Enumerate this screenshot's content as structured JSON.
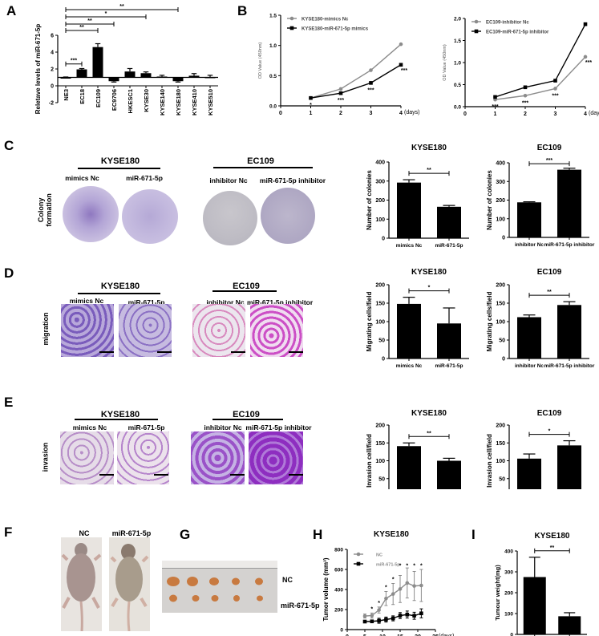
{
  "panels": {
    "A": {
      "letter": "A"
    },
    "B": {
      "letter": "B"
    },
    "C": {
      "letter": "C",
      "row_label_line1": "Colony",
      "row_label_line2": "formation",
      "group1": {
        "title": "KYSE180",
        "cond1": "mimics Nc",
        "cond2": "miR-671-5p"
      },
      "group2": {
        "title": "EC109",
        "cond1": "inhibitor Nc",
        "cond2": "miR-671-5p inhibitor"
      }
    },
    "D": {
      "letter": "D",
      "row_label": "migration",
      "group1": {
        "title": "KYSE180",
        "cond1": "mimics Nc",
        "cond2": "miR-671-5p"
      },
      "group2": {
        "title": "EC109",
        "cond1": "inhibitor Nc",
        "cond2": "miR-671-5p inhibitor"
      }
    },
    "E": {
      "letter": "E",
      "row_label": "invasion",
      "group1": {
        "title": "KYSE180",
        "cond1": "mimics Nc",
        "cond2": "miR-671-5p"
      },
      "group2": {
        "title": "EC109",
        "cond1": "inhibitor Nc",
        "cond2": "miR-671-5p inhibitor"
      }
    },
    "F": {
      "letter": "F",
      "label1": "NC",
      "label2": "miR-671-5p"
    },
    "G": {
      "letter": "G",
      "row1": "NC",
      "row2": "miR-671-5p"
    },
    "H": {
      "letter": "H"
    },
    "I": {
      "letter": "I"
    }
  },
  "colors": {
    "bar": "#000000",
    "grey_series": "#8c8c8c",
    "black_series": "#000000",
    "kyse_stain": "#9a86c8",
    "ec109_mig_stain": "#d86ab8",
    "ec109_inv_stain": "#a25ad0",
    "plate_bg": "#d8d4e0"
  },
  "chart_data": [
    {
      "id": "A",
      "type": "bar",
      "title": "",
      "ylabel": "Reletave levels of miR-671-5p",
      "xlabel": "",
      "categories": [
        "NE3",
        "EC18",
        "EC109",
        "EC9706",
        "HKESC1",
        "KYSE30",
        "KYSE140",
        "KYSE180",
        "KYSE410",
        "KYSE510"
      ],
      "values": [
        1.0,
        1.95,
        4.6,
        0.55,
        1.7,
        1.5,
        1.1,
        0.55,
        1.2,
        1.05
      ],
      "errors": [
        0.05,
        0.1,
        0.4,
        0.1,
        0.35,
        0.15,
        0.15,
        0.1,
        0.25,
        0.2
      ],
      "baseline": 1.0,
      "ylim": [
        -2,
        6
      ],
      "yticks": [
        -2,
        0,
        2,
        4,
        6
      ],
      "significance": [
        {
          "from": "NE3",
          "to": "EC18",
          "label": "***"
        },
        {
          "from": "NE3",
          "to": "EC109",
          "label": "**"
        },
        {
          "from": "NE3",
          "to": "EC9706",
          "label": "**"
        },
        {
          "from": "NE3",
          "to": "KYSE30",
          "label": "*"
        },
        {
          "from": "NE3",
          "to": "KYSE180",
          "label": "**"
        }
      ]
    },
    {
      "id": "B1",
      "type": "line",
      "ylabel": "OD Value (450nm)",
      "xlabel": "(days)",
      "x": [
        1,
        2,
        3,
        4
      ],
      "xticks": [
        0,
        1,
        2,
        3,
        4
      ],
      "ylim": [
        0,
        1.5
      ],
      "yticks": [
        "0.0",
        "0.5",
        "1.0",
        "1.5"
      ],
      "legend_position": "top-left",
      "series": [
        {
          "name": "KYSE180-mimics Nc",
          "color": "grey",
          "marker": "circle",
          "values": [
            0.13,
            0.28,
            0.59,
            1.02
          ]
        },
        {
          "name": "KYSE180-miR-671-5p mimics",
          "color": "black",
          "marker": "square",
          "values": [
            0.13,
            0.21,
            0.38,
            0.68
          ]
        }
      ],
      "annotations": [
        "*",
        "***",
        "***",
        "***"
      ]
    },
    {
      "id": "B2",
      "type": "line",
      "ylabel": "OD Value (450nm)",
      "xlabel": "(days)",
      "x": [
        1,
        2,
        3,
        4
      ],
      "xticks": [
        0,
        1,
        2,
        3,
        4
      ],
      "ylim": [
        0,
        2.0
      ],
      "yticks": [
        "0.0",
        "0.5",
        "1.0",
        "1.5",
        "2.0"
      ],
      "legend_position": "top-left",
      "series": [
        {
          "name": "EC109-inhibitor Nc",
          "color": "grey",
          "marker": "circle",
          "values": [
            0.16,
            0.25,
            0.41,
            1.13
          ]
        },
        {
          "name": "EC109-miR-671-5p inhibitor",
          "color": "black",
          "marker": "square",
          "values": [
            0.22,
            0.44,
            0.59,
            1.87
          ]
        }
      ],
      "annotations": [
        "***",
        "***",
        "***",
        "***"
      ]
    },
    {
      "id": "C1",
      "type": "bar",
      "title": "KYSE180",
      "ylabel": "Number of colonies",
      "categories": [
        "mimics Nc",
        "miR-671-5p"
      ],
      "values": [
        292,
        165
      ],
      "errors": [
        15,
        7
      ],
      "ylim": [
        0,
        400
      ],
      "yticks": [
        0,
        100,
        200,
        300,
        400
      ],
      "significance": [
        {
          "label": "**"
        }
      ]
    },
    {
      "id": "C2",
      "type": "bar",
      "title": "EC109",
      "ylabel": "Number of colonies",
      "categories": [
        "inhibitor Nc",
        "miR-671-5p inhibitor"
      ],
      "values": [
        188,
        363
      ],
      "errors": [
        3,
        8
      ],
      "ylim": [
        0,
        400
      ],
      "yticks": [
        0,
        100,
        200,
        300,
        400
      ],
      "significance": [
        {
          "label": "***"
        }
      ]
    },
    {
      "id": "D1",
      "type": "bar",
      "title": "KYSE180",
      "ylabel": "Migrating cells/field",
      "categories": [
        "mimics Nc",
        "miR-671-5p"
      ],
      "values": [
        148,
        95
      ],
      "errors": [
        18,
        42
      ],
      "ylim": [
        0,
        200
      ],
      "yticks": [
        0,
        50,
        100,
        150,
        200
      ],
      "significance": [
        {
          "label": "*"
        }
      ]
    },
    {
      "id": "D2",
      "type": "bar",
      "title": "EC109",
      "ylabel": "Migrating cells/field",
      "categories": [
        "inhibitor Nc",
        "miR-671-5p inhibitor"
      ],
      "values": [
        112,
        145
      ],
      "errors": [
        6,
        9
      ],
      "ylim": [
        0,
        200
      ],
      "yticks": [
        0,
        50,
        100,
        150,
        200
      ],
      "significance": [
        {
          "label": "**"
        }
      ]
    },
    {
      "id": "E1",
      "type": "bar",
      "title": "KYSE180",
      "ylabel": "Invasion cell/field",
      "categories": [
        "mimics Nc",
        "miR-671-5p"
      ],
      "values": [
        141,
        100
      ],
      "errors": [
        9,
        7
      ],
      "ylim": [
        0,
        200
      ],
      "yticks": [
        0,
        50,
        100,
        150,
        200
      ],
      "significance": [
        {
          "label": "**"
        }
      ]
    },
    {
      "id": "E2",
      "type": "bar",
      "title": "EC109",
      "ylabel": "Invasion cell/field",
      "categories": [
        "inhibitor Nc",
        "miR-671-5p inhibitor"
      ],
      "values": [
        106,
        143
      ],
      "errors": [
        13,
        13
      ],
      "ylim": [
        0,
        200
      ],
      "yticks": [
        0,
        50,
        100,
        150,
        200
      ],
      "significance": [
        {
          "label": "*"
        }
      ]
    },
    {
      "id": "H",
      "type": "line",
      "title": "KYSE180",
      "ylabel": "Tumor volume (mm³)",
      "xlabel": "(days)",
      "x": [
        5,
        7,
        9,
        11,
        13,
        15,
        17,
        19,
        21
      ],
      "xticks": [
        0,
        5,
        10,
        15,
        20,
        25
      ],
      "ylim": [
        0,
        800
      ],
      "yticks": [
        0,
        200,
        400,
        600,
        800
      ],
      "series": [
        {
          "name": "NC",
          "color": "grey",
          "marker": "circle",
          "values": [
            135,
            140,
            195,
            310,
            355,
            405,
            465,
            435,
            440
          ],
          "errors": [
            20,
            25,
            30,
            70,
            105,
            135,
            150,
            145,
            160
          ]
        },
        {
          "name": "miR-671-5p",
          "color": "black",
          "marker": "square",
          "values": [
            80,
            82,
            88,
            100,
            112,
            140,
            150,
            138,
            162
          ],
          "errors": [
            10,
            10,
            25,
            25,
            25,
            30,
            35,
            35,
            45
          ]
        }
      ],
      "annotations": [
        "",
        "*",
        "*",
        "*",
        "*",
        "*",
        "*",
        "*",
        "*"
      ]
    },
    {
      "id": "I",
      "type": "bar",
      "title": "KYSE180",
      "ylabel": "Tumour weight(mg)",
      "categories": [
        "NC",
        "miR-671-5p"
      ],
      "values": [
        275,
        87
      ],
      "errors": [
        95,
        17
      ],
      "ylim": [
        0,
        400
      ],
      "yticks": [
        0,
        100,
        200,
        300,
        400
      ],
      "significance": [
        {
          "label": "**"
        }
      ]
    }
  ]
}
